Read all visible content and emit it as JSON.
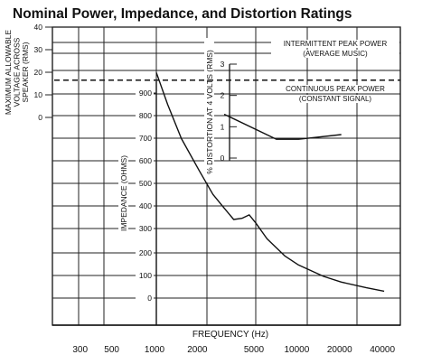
{
  "chart_data": {
    "type": "line",
    "title": "Nominal Power, Impedance, and Distortion Ratings",
    "xlabel": "FREQUENCY (Hz)",
    "x_scale": "log",
    "x_ticks": [
      300,
      500,
      1000,
      2000,
      5000,
      10000,
      20000,
      40000
    ],
    "x_tick_labels": [
      "300",
      "500",
      "1000",
      "2000",
      "5000",
      "10000",
      "20000",
      "40000"
    ],
    "grid": true,
    "axes": {
      "voltage": {
        "label": "MAXIMUM ALLOWABLE VOLTAGE ACROSS SPEAKER (RMS)",
        "range": [
          0,
          40
        ],
        "ticks": [
          "40",
          "30",
          "20",
          "10",
          "0"
        ]
      },
      "impedance": {
        "label": "IMPEDANCE (OHMS)",
        "range": [
          0,
          1000
        ],
        "ticks": [
          "900",
          "800",
          "700",
          "600",
          "500",
          "400",
          "300",
          "200",
          "100",
          "0"
        ]
      },
      "distortion": {
        "label": "% DISTORTION AT 4 VOLTS (RMS)",
        "range": [
          0,
          3
        ],
        "ticks": [
          "3",
          "2",
          "1",
          "0"
        ]
      }
    },
    "annotations": [
      {
        "lines": [
          "INTERMITTENT PEAK POWER",
          "(AVERAGE MUSIC)"
        ],
        "value": 20
      },
      {
        "lines": [
          "CONTINUOUS PEAK POWER",
          "(CONSTANT SIGNAL)"
        ],
        "value": 15
      }
    ],
    "series": [
      {
        "axis": "voltage",
        "style": "dashed",
        "x": [
          150,
          40000
        ],
        "y": [
          16.5,
          16.5
        ]
      },
      {
        "axis": "impedance",
        "style": "solid",
        "x": [
          1000,
          1200,
          1500,
          2000,
          2500,
          3000,
          3500,
          4000,
          4500,
          5000,
          6000,
          8000,
          10000,
          15000,
          20000,
          30000,
          40000
        ],
        "y": [
          990,
          850,
          700,
          560,
          455,
          395,
          345,
          350,
          365,
          330,
          260,
          185,
          145,
          95,
          70,
          45,
          30
        ]
      },
      {
        "axis": "distortion",
        "style": "solid",
        "x": [
          3000,
          7000,
          10000,
          20000
        ],
        "y": [
          1.4,
          0.6,
          0.6,
          0.75
        ]
      }
    ]
  }
}
